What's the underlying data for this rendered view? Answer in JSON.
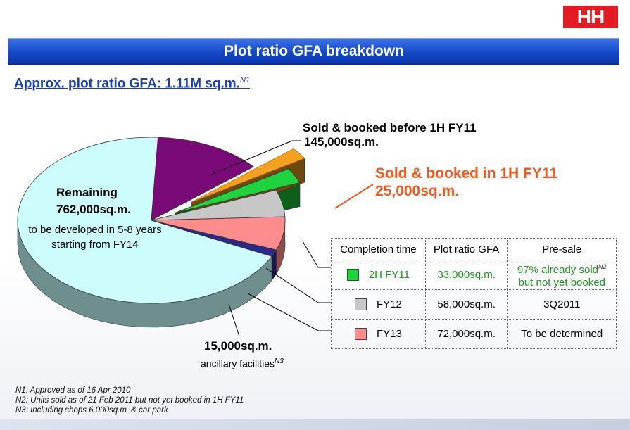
{
  "logo": {
    "text": "HH"
  },
  "title": "Plot ratio GFA breakdown",
  "subtitle": {
    "text": "Approx. plot ratio GFA: 1.11M sq.m.",
    "note": "N1"
  },
  "chart_data": {
    "type": "pie",
    "total": "1.11M sq.m.",
    "slices": [
      {
        "label": "Remaining",
        "value": 762000,
        "color": "#ccfcfc"
      },
      {
        "label": "Sold & booked before 1H FY11",
        "value": 145000,
        "color": "#7a0a78"
      },
      {
        "label": "Sold & booked in 1H FY11",
        "value": 25000,
        "color": "#f4a21e"
      },
      {
        "label": "2H FY11",
        "value": 33000,
        "color": "#1ed43c"
      },
      {
        "label": "FY12",
        "value": 58000,
        "color": "#c7c7c7"
      },
      {
        "label": "FY13",
        "value": 72000,
        "color": "#ff8c8c"
      },
      {
        "label": "ancillary facilities",
        "value": 15000,
        "color": "#2a2a8a"
      }
    ],
    "annotations": {
      "remaining_title": "Remaining",
      "remaining_value": "762,000sq.m.",
      "remaining_note": "to be developed in 5-8 years starting from FY14",
      "sold_before_title": "Sold & booked before 1H FY11",
      "sold_before_value": "145,000sq.m.",
      "sold_1h_title": "Sold & booked in 1H FY11",
      "sold_1h_value": "25,000sq.m.",
      "ancillary_value": "15,000sq.m.",
      "ancillary_label": "ancillary facilities",
      "ancillary_note": "N3"
    }
  },
  "table": {
    "headers": [
      "Completion time",
      "Plot ratio GFA",
      "Pre-sale"
    ],
    "rows": [
      {
        "period": "2H FY11",
        "gfa": "33,000sq.m.",
        "presale_line1": "97% already sold",
        "presale_line2": "but not yet booked",
        "presale_note": "N2",
        "swatch": "#1ed43c"
      },
      {
        "period": "FY12",
        "gfa": "58,000sq.m.",
        "presale": "3Q2011",
        "swatch": "#c7c7c7"
      },
      {
        "period": "FY13",
        "gfa": "72,000sq.m.",
        "presale": "To be determined",
        "swatch": "#ff8c8c"
      }
    ]
  },
  "footnotes": [
    "N1: Approved as of 16 Apr 2010",
    "N2: Units sold as of 21 Feb 2011 but not yet booked in 1H FY11",
    "N3: Including shops 6,000sq.m. & car park"
  ]
}
